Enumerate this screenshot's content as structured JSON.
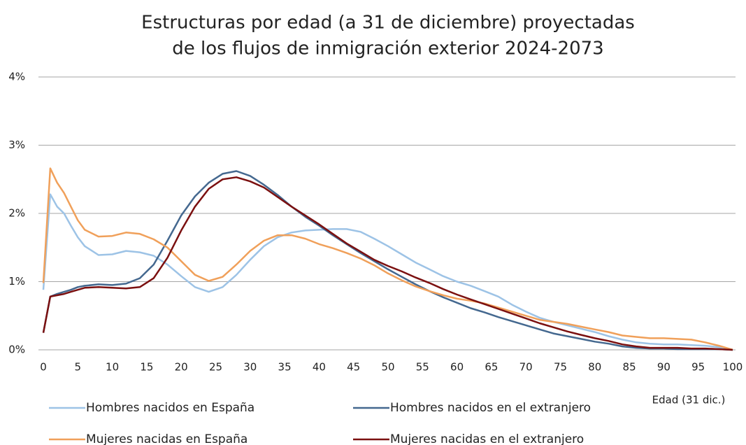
{
  "chart_data": {
    "type": "line",
    "title": [
      "Estructuras por edad (a 31 de diciembre) proyectadas",
      "de los flujos de inmigración exterior 2024-2073"
    ],
    "x_label": "Edad (31 dic.)",
    "x": [
      0,
      1,
      2,
      3,
      4,
      5,
      6,
      8,
      10,
      12,
      14,
      16,
      18,
      20,
      22,
      24,
      26,
      28,
      30,
      32,
      34,
      36,
      38,
      40,
      42,
      44,
      46,
      48,
      50,
      52,
      54,
      56,
      58,
      60,
      62,
      64,
      66,
      68,
      70,
      72,
      74,
      76,
      78,
      80,
      82,
      84,
      86,
      88,
      90,
      92,
      94,
      96,
      98,
      100
    ],
    "series": [
      {
        "name": "Hombres nacidos en España",
        "color": "#9dc3e6",
        "values": [
          0.88,
          2.28,
          2.1,
          2.0,
          1.82,
          1.65,
          1.52,
          1.39,
          1.4,
          1.45,
          1.43,
          1.38,
          1.25,
          1.08,
          0.92,
          0.85,
          0.92,
          1.1,
          1.32,
          1.52,
          1.65,
          1.72,
          1.75,
          1.76,
          1.77,
          1.77,
          1.73,
          1.63,
          1.52,
          1.4,
          1.28,
          1.18,
          1.08,
          1.0,
          0.94,
          0.86,
          0.78,
          0.66,
          0.56,
          0.47,
          0.41,
          0.36,
          0.31,
          0.26,
          0.2,
          0.15,
          0.11,
          0.09,
          0.08,
          0.08,
          0.07,
          0.06,
          0.04,
          0
        ]
      },
      {
        "name": "Hombres nacidos en el extranjero",
        "color": "#44688f",
        "values": [
          0.25,
          0.78,
          0.82,
          0.85,
          0.88,
          0.92,
          0.94,
          0.96,
          0.95,
          0.97,
          1.05,
          1.25,
          1.6,
          1.97,
          2.25,
          2.45,
          2.58,
          2.62,
          2.55,
          2.42,
          2.27,
          2.1,
          1.95,
          1.82,
          1.68,
          1.55,
          1.42,
          1.3,
          1.18,
          1.07,
          0.96,
          0.86,
          0.77,
          0.69,
          0.61,
          0.55,
          0.48,
          0.42,
          0.36,
          0.3,
          0.24,
          0.2,
          0.16,
          0.12,
          0.09,
          0.05,
          0.03,
          0.02,
          0.02,
          0.01,
          0.01,
          0.01,
          0.01,
          0
        ]
      },
      {
        "name": "Mujeres nacidas en España",
        "color": "#f0a05a",
        "values": [
          0.98,
          2.66,
          2.45,
          2.3,
          2.1,
          1.9,
          1.76,
          1.66,
          1.67,
          1.72,
          1.7,
          1.62,
          1.5,
          1.3,
          1.1,
          1.01,
          1.07,
          1.25,
          1.45,
          1.6,
          1.68,
          1.68,
          1.63,
          1.55,
          1.49,
          1.42,
          1.34,
          1.24,
          1.12,
          1.02,
          0.93,
          0.86,
          0.8,
          0.75,
          0.72,
          0.68,
          0.62,
          0.56,
          0.5,
          0.44,
          0.41,
          0.38,
          0.34,
          0.3,
          0.26,
          0.21,
          0.19,
          0.17,
          0.17,
          0.16,
          0.15,
          0.11,
          0.06,
          0
        ]
      },
      {
        "name": "Mujeres nacidas en el extranjero",
        "color": "#7b1010",
        "values": [
          0.25,
          0.78,
          0.8,
          0.82,
          0.85,
          0.88,
          0.91,
          0.92,
          0.91,
          0.9,
          0.92,
          1.05,
          1.35,
          1.75,
          2.1,
          2.36,
          2.5,
          2.53,
          2.47,
          2.38,
          2.24,
          2.1,
          1.97,
          1.84,
          1.7,
          1.56,
          1.44,
          1.32,
          1.23,
          1.15,
          1.06,
          0.98,
          0.89,
          0.81,
          0.74,
          0.67,
          0.6,
          0.53,
          0.46,
          0.39,
          0.33,
          0.27,
          0.22,
          0.17,
          0.13,
          0.08,
          0.05,
          0.03,
          0.03,
          0.03,
          0.02,
          0.02,
          0.01,
          0
        ]
      }
    ],
    "xlim": [
      0,
      100
    ],
    "xticks": [
      0,
      5,
      10,
      15,
      20,
      25,
      30,
      35,
      40,
      45,
      50,
      55,
      60,
      65,
      70,
      75,
      80,
      85,
      90,
      95,
      100
    ],
    "ylim": [
      0,
      4
    ],
    "yticks": [
      {
        "value": 0,
        "label": "0%"
      },
      {
        "value": 1,
        "label": "1%"
      },
      {
        "value": 2,
        "label": "2%"
      },
      {
        "value": 3,
        "label": "3%"
      },
      {
        "value": 4,
        "label": "4%"
      }
    ],
    "grid": true,
    "legend": "bottom"
  }
}
